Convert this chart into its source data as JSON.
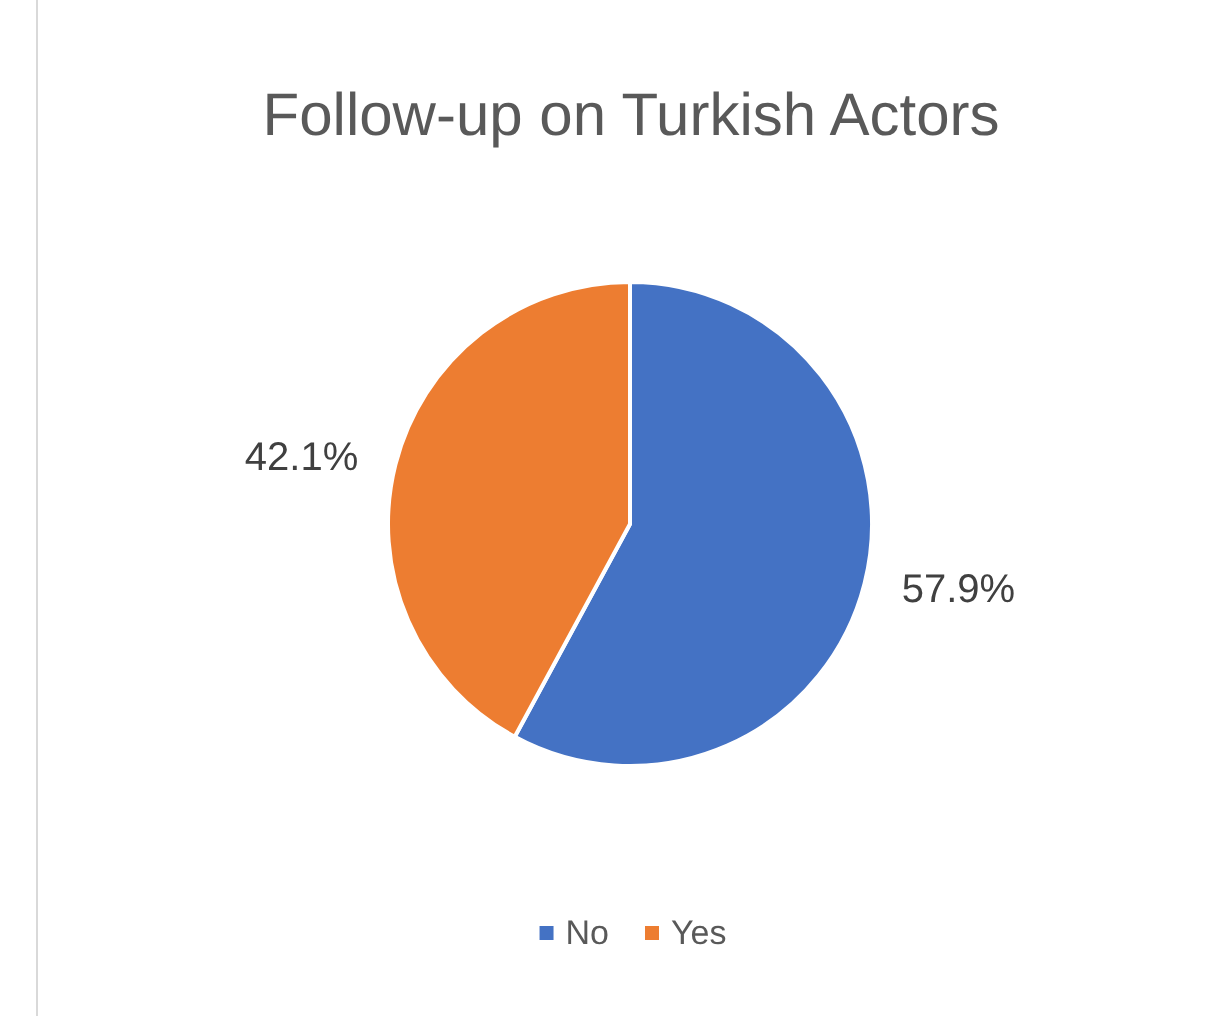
{
  "chart_data": {
    "type": "pie",
    "title": "Follow-up on Turkish Actors",
    "categories": [
      "No",
      "Yes"
    ],
    "values": [
      57.9,
      42.1
    ],
    "colors": [
      "#4472c4",
      "#ed7d31"
    ],
    "value_labels": [
      "57.9%",
      "42.1%"
    ],
    "legend": "bottom"
  }
}
